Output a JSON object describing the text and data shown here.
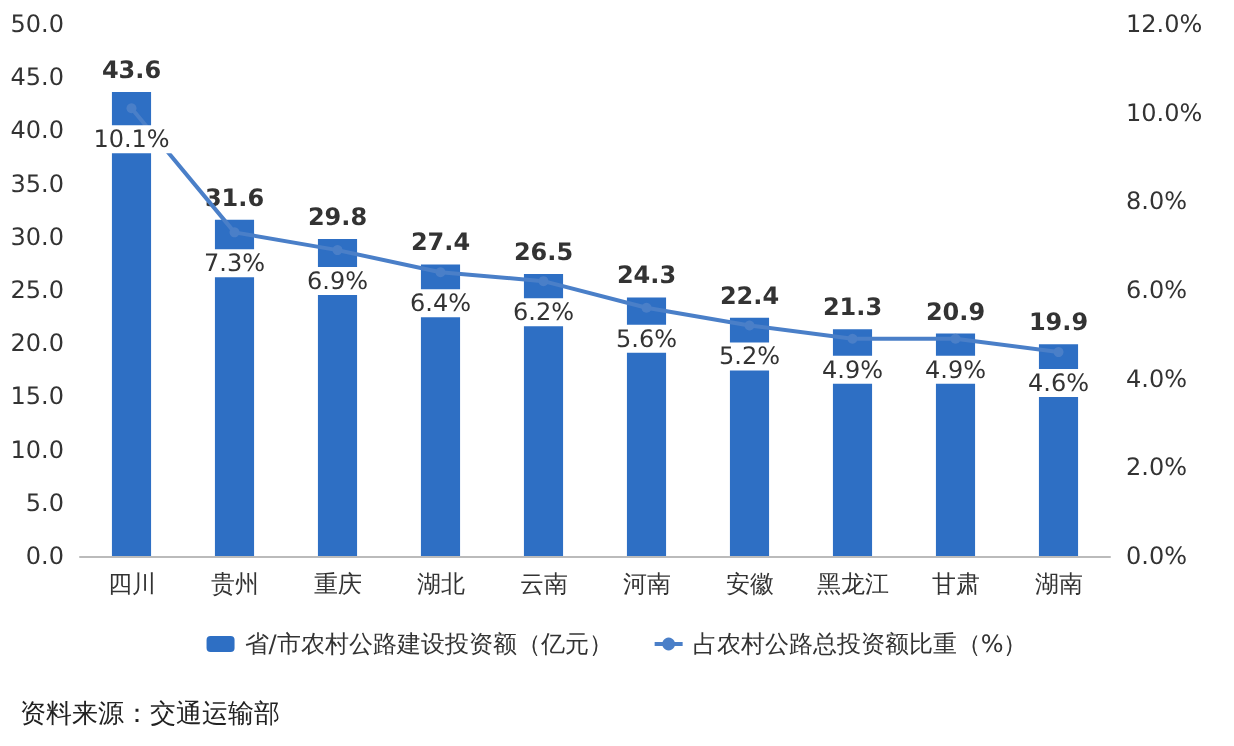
{
  "chart_data": {
    "type": "bar",
    "categories": [
      "四川",
      "贵州",
      "重庆",
      "湖北",
      "云南",
      "河南",
      "安徽",
      "黑龙江",
      "甘肃",
      "湖南"
    ],
    "series": [
      {
        "name": "省/市农村公路建设投资额（亿元）",
        "color": "#2e6fc4",
        "values": [
          43.6,
          31.6,
          29.8,
          27.4,
          26.5,
          24.3,
          22.4,
          21.3,
          20.9,
          19.9
        ],
        "value_labels": [
          "43.6",
          "31.6",
          "29.8",
          "27.4",
          "26.5",
          "24.3",
          "22.4",
          "21.3",
          "20.9",
          "19.9"
        ]
      },
      {
        "name": "占农村公路总投资额比重（%）",
        "type": "line",
        "axis": "y2",
        "color": "#4a7fc8",
        "marker": "circle",
        "values": [
          10.1,
          7.3,
          6.9,
          6.4,
          6.2,
          5.6,
          5.2,
          4.9,
          4.9,
          4.6
        ],
        "value_labels": [
          "10.1%",
          "7.3%",
          "6.9%",
          "6.4%",
          "6.2%",
          "5.6%",
          "5.2%",
          "4.9%",
          "4.9%",
          "4.6%"
        ]
      }
    ],
    "ylim": [
      0,
      50
    ],
    "yticks": [
      {
        "value": 0,
        "label": "0.0"
      },
      {
        "value": 5,
        "label": "5.0"
      },
      {
        "value": 10,
        "label": "10.0"
      },
      {
        "value": 15,
        "label": "15.0"
      },
      {
        "value": 20,
        "label": "20.0"
      },
      {
        "value": 25,
        "label": "25.0"
      },
      {
        "value": 30,
        "label": "30.0"
      },
      {
        "value": 35,
        "label": "35.0"
      },
      {
        "value": 40,
        "label": "40.0"
      },
      {
        "value": 45,
        "label": "45.0"
      },
      {
        "value": 50,
        "label": "50.0"
      }
    ],
    "y2lim": [
      0,
      12
    ],
    "y2ticks": [
      {
        "value": 0,
        "label": "0.0%"
      },
      {
        "value": 2,
        "label": "2.0%"
      },
      {
        "value": 4,
        "label": "4.0%"
      },
      {
        "value": 6,
        "label": "6.0%"
      },
      {
        "value": 8,
        "label": "8.0%"
      },
      {
        "value": 10,
        "label": "10.0%"
      },
      {
        "value": 12,
        "label": "12.0%"
      }
    ],
    "legend": "bottom",
    "grid": false,
    "annotations": [
      "资料来源：交通运输部"
    ]
  }
}
